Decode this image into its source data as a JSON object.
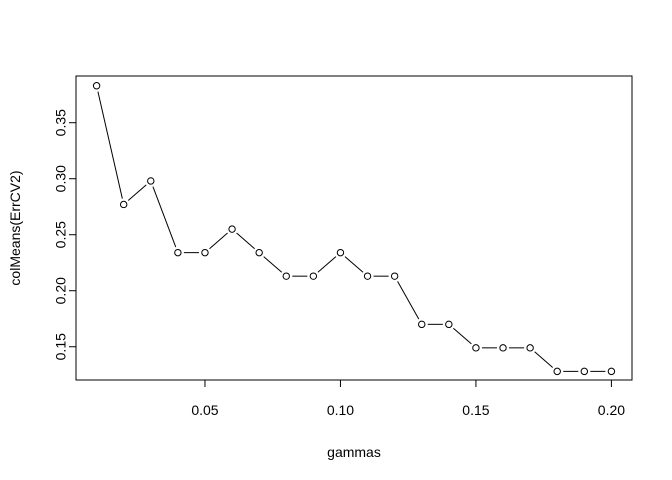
{
  "chart_data": {
    "type": "line",
    "title": "",
    "xlabel": "gammas",
    "ylabel": "colMeans(ErrCV2)",
    "xlim": [
      0.0024,
      0.2076
    ],
    "ylim": [
      0.1203,
      0.3917
    ],
    "xticks": [
      0.05,
      0.1,
      0.15,
      0.2
    ],
    "xtick_labels": [
      "0.05",
      "0.10",
      "0.15",
      "0.20"
    ],
    "yticks": [
      0.15,
      0.2,
      0.25,
      0.3,
      0.35
    ],
    "ytick_labels": [
      "0.15",
      "0.20",
      "0.25",
      "0.30",
      "0.35"
    ],
    "grid": false,
    "marker": "open-circle",
    "line_style": "overplotted (type b)",
    "x": [
      0.01,
      0.02,
      0.03,
      0.04,
      0.05,
      0.06,
      0.07,
      0.08,
      0.09,
      0.1,
      0.11,
      0.12,
      0.13,
      0.14,
      0.15,
      0.16,
      0.17,
      0.18,
      0.19,
      0.2
    ],
    "y": [
      0.383,
      0.277,
      0.298,
      0.234,
      0.234,
      0.255,
      0.234,
      0.213,
      0.213,
      0.234,
      0.213,
      0.213,
      0.17,
      0.17,
      0.149,
      0.149,
      0.149,
      0.128,
      0.128,
      0.128
    ]
  }
}
